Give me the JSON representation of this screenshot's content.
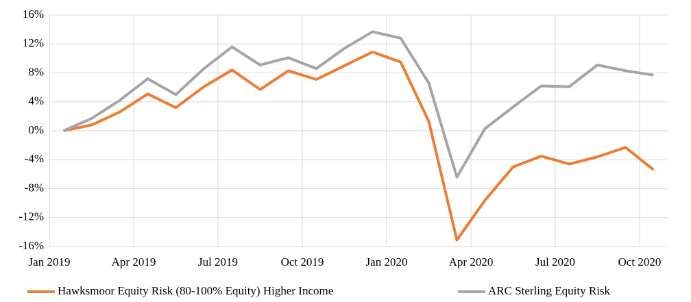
{
  "chart_data": {
    "type": "line",
    "x": [
      0,
      1,
      2,
      3,
      4,
      5,
      6,
      7,
      8,
      9,
      10,
      11,
      12,
      13,
      14,
      15,
      16,
      17,
      18,
      19,
      20,
      21
    ],
    "xlim": [
      -0.5,
      21.5
    ],
    "xticks": [
      {
        "value": -0.5,
        "label": "Jan 2019"
      },
      {
        "value": 2.5,
        "label": "Apr 2019"
      },
      {
        "value": 5.5,
        "label": "Jul 2019"
      },
      {
        "value": 8.5,
        "label": "Oct 2019"
      },
      {
        "value": 11.5,
        "label": "Jan 2020"
      },
      {
        "value": 14.5,
        "label": "Apr 2020"
      },
      {
        "value": 17.5,
        "label": "Jul 2020"
      },
      {
        "value": 20.5,
        "label": "Oct 2020"
      }
    ],
    "ylim": [
      -16,
      16
    ],
    "yticks": [
      {
        "value": 16,
        "label": "16%"
      },
      {
        "value": 12,
        "label": "12%"
      },
      {
        "value": 8,
        "label": "8%"
      },
      {
        "value": 4,
        "label": "4%"
      },
      {
        "value": 0,
        "label": "0%"
      },
      {
        "value": -4,
        "label": "-4%"
      },
      {
        "value": -8,
        "label": "-8%"
      },
      {
        "value": -12,
        "label": "-12%"
      },
      {
        "value": -16,
        "label": "-16%"
      }
    ],
    "grid": true,
    "legend": "bottom",
    "series": [
      {
        "name": "Hawksmoor Equity Risk (80-100% Equity) Higher Income",
        "color": "#ed7d31",
        "values": [
          0,
          0.8,
          2.6,
          5.1,
          3.2,
          6.1,
          8.4,
          5.7,
          8.3,
          7.1,
          9.0,
          10.9,
          9.5,
          1.3,
          -15.1,
          -9.6,
          -5.0,
          -3.5,
          -4.6,
          -3.6,
          -2.3,
          -5.4
        ]
      },
      {
        "name": "ARC Sterling Equity Risk",
        "color": "#a5a5a5",
        "values": [
          0,
          1.7,
          4.2,
          7.2,
          5.0,
          8.6,
          11.6,
          9.1,
          10.1,
          8.6,
          11.4,
          13.7,
          12.8,
          6.6,
          -6.4,
          0.3,
          3.3,
          6.2,
          6.1,
          9.1,
          8.3,
          7.7
        ]
      }
    ]
  }
}
